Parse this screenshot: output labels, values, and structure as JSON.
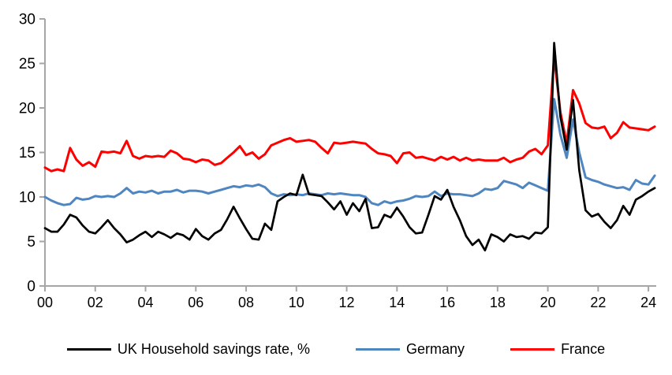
{
  "chart_data": {
    "type": "line",
    "title": "",
    "x_start_year": 2000,
    "x_step_years": 0.25,
    "x_axis": {
      "tick_labels": [
        "00",
        "02",
        "04",
        "06",
        "08",
        "10",
        "12",
        "14",
        "16",
        "18",
        "20",
        "22",
        "24"
      ],
      "tick_years_since_2000": [
        0,
        2,
        4,
        6,
        8,
        10,
        12,
        14,
        16,
        18,
        20,
        22,
        24
      ]
    },
    "y_axis": {
      "ticks": [
        0,
        5,
        10,
        15,
        20,
        25,
        30
      ],
      "min": 0,
      "max": 30
    },
    "axis_color": "#A6A6A6",
    "label_color": "#000000",
    "legend_position": "bottom",
    "series": [
      {
        "name": "UK Household savings rate, %",
        "color": "#000000",
        "values": [
          6.5,
          6.1,
          6.1,
          6.9,
          8.0,
          7.7,
          6.8,
          6.1,
          5.9,
          6.6,
          7.4,
          6.5,
          5.8,
          4.9,
          5.2,
          5.7,
          6.1,
          5.5,
          6.1,
          5.8,
          5.4,
          5.9,
          5.7,
          5.2,
          6.4,
          5.6,
          5.2,
          5.9,
          6.3,
          7.5,
          8.9,
          7.6,
          6.4,
          5.3,
          5.2,
          7.0,
          6.3,
          9.5,
          10.0,
          10.4,
          10.2,
          12.5,
          10.3,
          10.2,
          10.1,
          9.4,
          8.6,
          9.5,
          8.0,
          9.3,
          8.4,
          9.8,
          6.5,
          6.6,
          8.0,
          7.7,
          8.8,
          7.8,
          6.6,
          5.9,
          6.0,
          8.0,
          10.1,
          9.7,
          10.8,
          8.9,
          7.4,
          5.6,
          4.6,
          5.2,
          4.0,
          5.8,
          5.5,
          5.0,
          5.8,
          5.5,
          5.6,
          5.3,
          6.0,
          5.9,
          6.6,
          27.3,
          19.0,
          15.3,
          20.9,
          13.0,
          8.5,
          7.8,
          8.1,
          7.2,
          6.5,
          7.4,
          9.0,
          8.0,
          9.7,
          10.1,
          10.6,
          11.0
        ]
      },
      {
        "name": "Germany",
        "color": "#4F86C0",
        "values": [
          10.0,
          9.6,
          9.3,
          9.1,
          9.2,
          9.9,
          9.7,
          9.8,
          10.1,
          10.0,
          10.1,
          10.0,
          10.4,
          11.0,
          10.4,
          10.6,
          10.5,
          10.7,
          10.4,
          10.6,
          10.6,
          10.8,
          10.5,
          10.7,
          10.7,
          10.6,
          10.4,
          10.6,
          10.8,
          11.0,
          11.2,
          11.1,
          11.3,
          11.2,
          11.4,
          11.1,
          10.4,
          10.1,
          10.3,
          10.2,
          10.3,
          10.2,
          10.4,
          10.3,
          10.2,
          10.4,
          10.3,
          10.4,
          10.3,
          10.2,
          10.2,
          10.0,
          9.3,
          9.1,
          9.5,
          9.3,
          9.5,
          9.6,
          9.8,
          10.1,
          10.0,
          10.1,
          10.6,
          10.1,
          10.4,
          10.3,
          10.3,
          10.2,
          10.1,
          10.4,
          10.9,
          10.8,
          11.0,
          11.8,
          11.6,
          11.4,
          11.0,
          11.6,
          11.3,
          11.0,
          10.7,
          21.0,
          17.0,
          14.4,
          18.7,
          15.0,
          12.2,
          11.9,
          11.7,
          11.4,
          11.2,
          11.0,
          11.1,
          10.8,
          11.9,
          11.5,
          11.4,
          12.4
        ]
      },
      {
        "name": "France",
        "color": "#FF0000",
        "values": [
          13.3,
          12.9,
          13.1,
          12.9,
          15.5,
          14.2,
          13.5,
          13.9,
          13.4,
          15.1,
          15.0,
          15.1,
          14.9,
          16.3,
          14.6,
          14.3,
          14.6,
          14.5,
          14.6,
          14.5,
          15.2,
          14.9,
          14.3,
          14.2,
          13.9,
          14.2,
          14.1,
          13.6,
          13.8,
          14.4,
          15.0,
          15.7,
          14.7,
          15.0,
          14.3,
          14.8,
          15.8,
          16.1,
          16.4,
          16.6,
          16.2,
          16.3,
          16.4,
          16.2,
          15.5,
          14.9,
          16.1,
          16.0,
          16.1,
          16.2,
          16.1,
          16.0,
          15.4,
          14.9,
          14.8,
          14.6,
          13.8,
          14.9,
          15.0,
          14.4,
          14.5,
          14.3,
          14.1,
          14.5,
          14.2,
          14.5,
          14.1,
          14.4,
          14.1,
          14.2,
          14.1,
          14.1,
          14.1,
          14.4,
          13.9,
          14.2,
          14.4,
          15.1,
          15.4,
          14.8,
          15.8,
          25.8,
          19.5,
          16.0,
          22.0,
          20.5,
          18.3,
          17.8,
          17.7,
          17.9,
          16.6,
          17.2,
          18.4,
          17.8,
          17.7,
          17.6,
          17.5,
          17.9
        ]
      }
    ]
  }
}
